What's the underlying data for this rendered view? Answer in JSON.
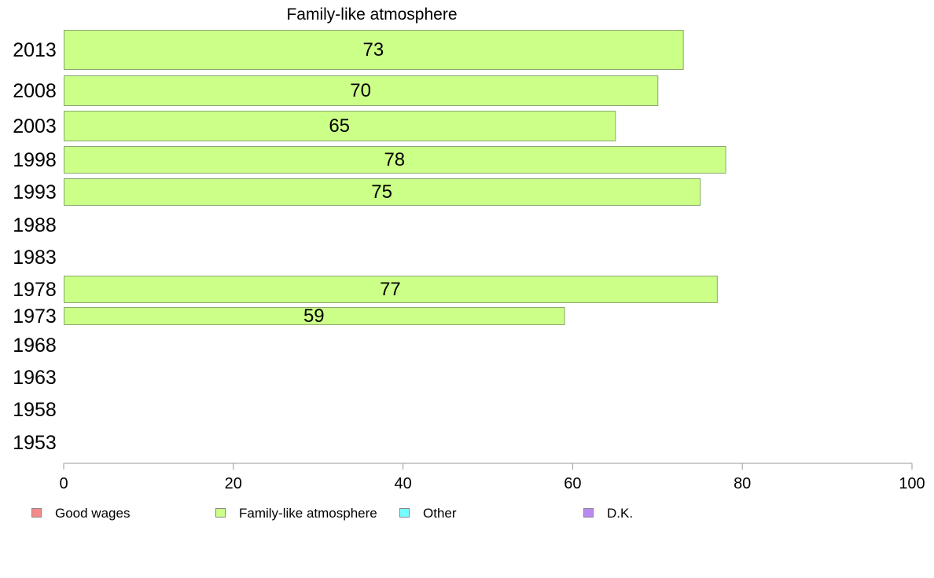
{
  "chart_data": {
    "type": "bar",
    "orientation": "horizontal",
    "title": "Family-like atmosphere",
    "categories": [
      "2013",
      "2008",
      "2003",
      "1998",
      "1993",
      "1988",
      "1983",
      "1978",
      "1973",
      "1968",
      "1963",
      "1958",
      "1953"
    ],
    "series": [
      {
        "name": "Family-like atmosphere",
        "values": [
          73,
          70,
          65,
          78,
          75,
          null,
          null,
          77,
          59,
          null,
          null,
          null,
          null
        ]
      }
    ],
    "xlim": [
      0,
      100
    ],
    "xticks": [
      0,
      20,
      40,
      60,
      80,
      100
    ],
    "grid": false,
    "legend_position": "bottom",
    "legend": [
      {
        "label": "Good wages",
        "color": "#f58a8a"
      },
      {
        "label": "Family-like atmosphere",
        "color": "#ccff88"
      },
      {
        "label": "Other",
        "color": "#77ffff"
      },
      {
        "label": "D.K.",
        "color": "#b98af2"
      }
    ],
    "bar_color": "#ccff88",
    "bar_stroke": "#8aa870",
    "axis_color": "#9a9a9a"
  }
}
